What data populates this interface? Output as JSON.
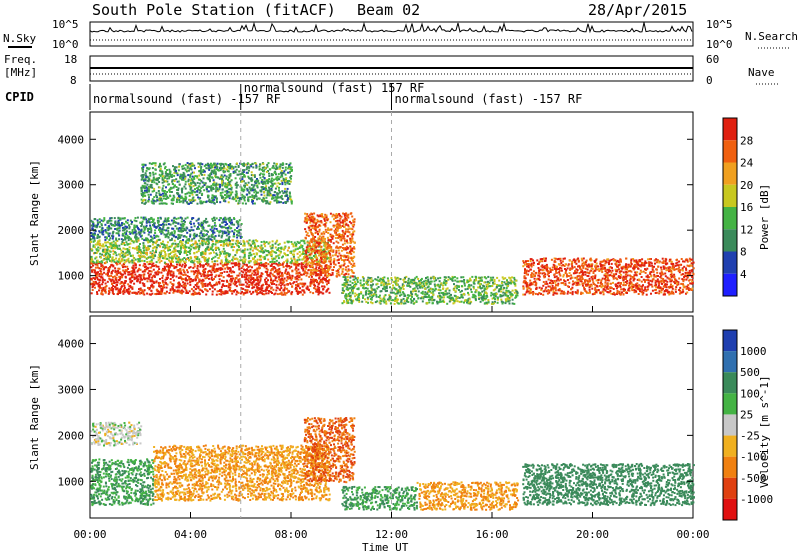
{
  "header": {
    "station": "South Pole Station (fitACF)",
    "beam": "Beam 02",
    "date": "28/Apr/2015"
  },
  "left_labels": {
    "nsky": "N.Sky",
    "freq_line1": "Freq.",
    "freq_line2": "[MHz]",
    "cpid": "CPID"
  },
  "right_labels": {
    "nsearch": "N.Search",
    "nave": "Nave"
  },
  "noise_axis": {
    "top": "10^5",
    "bottom": "10^0"
  },
  "freq_axis": {
    "top": "18",
    "bottom": "8"
  },
  "nave_axis": {
    "top": "60",
    "bottom": "0"
  },
  "cpid_segments": [
    {
      "label": "normalsound (fast) -157 RF",
      "start_hour": 0.0
    },
    {
      "label": "normalsound (fast) 157 RF",
      "start_hour": 6.0
    },
    {
      "label": "normalsound (fast) -157 RF",
      "start_hour": 12.0
    }
  ],
  "x_axis": {
    "label": "Time UT",
    "ticks": [
      "00:00",
      "04:00",
      "08:00",
      "12:00",
      "16:00",
      "20:00",
      "00:00"
    ]
  },
  "y_axis": {
    "label": "Slant Range [km]",
    "ticks": [
      "1000",
      "2000",
      "3000",
      "4000"
    ]
  },
  "power_scale": {
    "label": "Power [dB]",
    "ticks": [
      "4",
      "8",
      "12",
      "16",
      "20",
      "24",
      "28"
    ],
    "colors": [
      "#1f1fff",
      "#2040b0",
      "#3a8a5a",
      "#44b344",
      "#c8c820",
      "#f0a020",
      "#f06010",
      "#e02010"
    ]
  },
  "velocity_scale": {
    "label": "Velocity [m s^-1]",
    "ticks": [
      "1000",
      "500",
      "100",
      "25",
      "-25",
      "-100",
      "-500",
      "-1000"
    ],
    "colors": [
      "#1f3fb0",
      "#3070b0",
      "#3a8a5a",
      "#44b344",
      "#c8c8c8",
      "#f0b020",
      "#f08010",
      "#e04010",
      "#e01010"
    ]
  },
  "chart_data": {
    "type": "heatmap",
    "title": "South Pole Station (fitACF) Beam 02",
    "xlabel": "Time UT",
    "ylabel": "Slant Range [km]",
    "xlim": [
      0,
      24
    ],
    "ylim": [
      200,
      4600
    ],
    "series": [
      {
        "name": "Power [dB]",
        "bands": [
          {
            "x": [
              0,
              9.5
            ],
            "range_low": 600,
            "range_high": 1300,
            "value": 28
          },
          {
            "x": [
              0,
              9.5
            ],
            "range_low": 1300,
            "range_high": 1800,
            "value": 14
          },
          {
            "x": [
              0,
              6
            ],
            "range_low": 1800,
            "range_high": 2300,
            "value": 8
          },
          {
            "x": [
              2,
              8
            ],
            "range_low": 2600,
            "range_high": 3500,
            "value": 10
          },
          {
            "x": [
              8.5,
              10.5
            ],
            "range_low": 1000,
            "range_high": 2400,
            "value": 24
          },
          {
            "x": [
              10,
              17
            ],
            "range_low": 400,
            "range_high": 1000,
            "value": 12
          },
          {
            "x": [
              17.2,
              24
            ],
            "range_low": 600,
            "range_high": 1400,
            "value": 26
          }
        ]
      },
      {
        "name": "Velocity [m s^-1]",
        "bands": [
          {
            "x": [
              0,
              2.5
            ],
            "range_low": 500,
            "range_high": 1500,
            "value": 100
          },
          {
            "x": [
              2.5,
              9.5
            ],
            "range_low": 600,
            "range_high": 1800,
            "value": -100
          },
          {
            "x": [
              0,
              2
            ],
            "range_low": 1800,
            "range_high": 2300,
            "value": 0
          },
          {
            "x": [
              8.5,
              10.5
            ],
            "range_low": 1000,
            "range_high": 2400,
            "value": -500
          },
          {
            "x": [
              10,
              13
            ],
            "range_low": 400,
            "range_high": 900,
            "value": 100
          },
          {
            "x": [
              13,
              17
            ],
            "range_low": 400,
            "range_high": 1000,
            "value": -100
          },
          {
            "x": [
              17.2,
              24
            ],
            "range_low": 500,
            "range_high": 1400,
            "value": 200
          }
        ]
      }
    ]
  }
}
